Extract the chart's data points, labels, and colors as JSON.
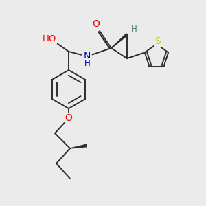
{
  "bg_color": "#ebebeb",
  "bond_color": "#2d2d2d",
  "atom_colors": {
    "O": "#ff0000",
    "N": "#0000cc",
    "S": "#cccc00",
    "H": "#4a7a7a",
    "C": "#2d2d2d"
  },
  "font_size": 9,
  "lw": 1.4
}
